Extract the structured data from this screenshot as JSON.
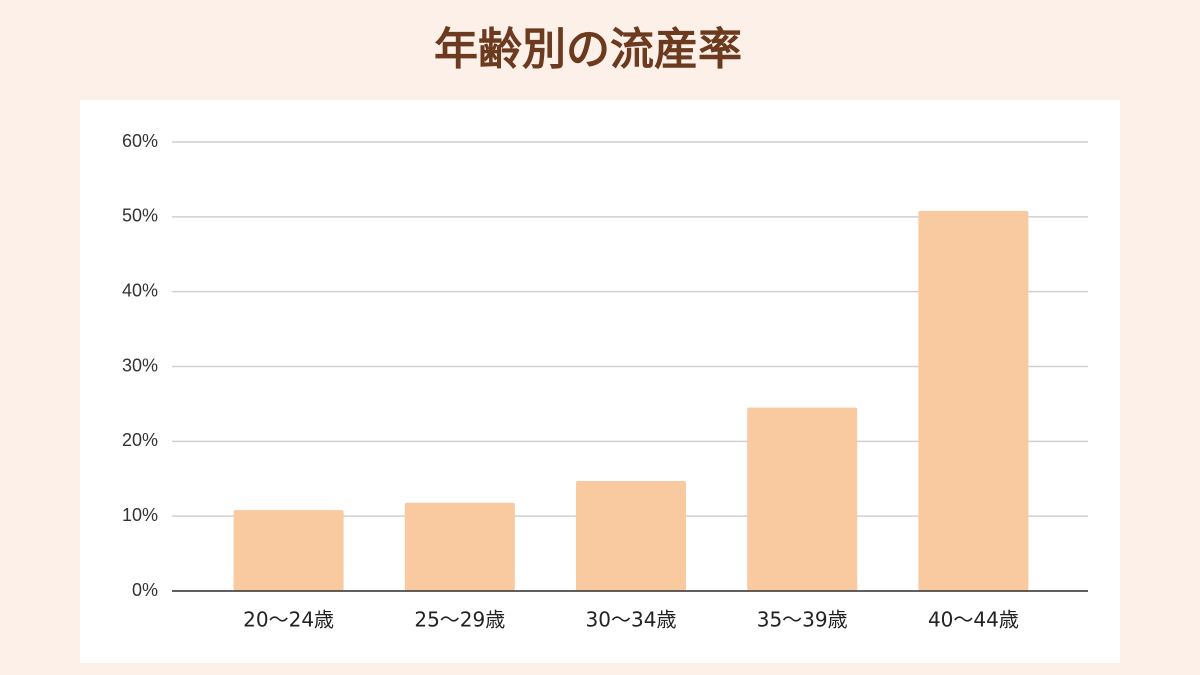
{
  "chart_data": {
    "type": "bar",
    "title": "年齢別の流産率",
    "categories": [
      "20～24歳",
      "25～29歳",
      "30～34歳",
      "35～39歳",
      "40～44歳"
    ],
    "values": [
      10.8,
      11.8,
      14.7,
      24.5,
      50.8
    ],
    "color": "#f9c99f",
    "ylim": [
      0,
      60
    ],
    "yticks": [
      {
        "value": 0,
        "label": "0%"
      },
      {
        "value": 10,
        "label": "10%"
      },
      {
        "value": 20,
        "label": "20%"
      },
      {
        "value": 30,
        "label": "30%"
      },
      {
        "value": 40,
        "label": "40%"
      },
      {
        "value": 50,
        "label": "50%"
      },
      {
        "value": 60,
        "label": "60%"
      }
    ],
    "grid": true
  }
}
